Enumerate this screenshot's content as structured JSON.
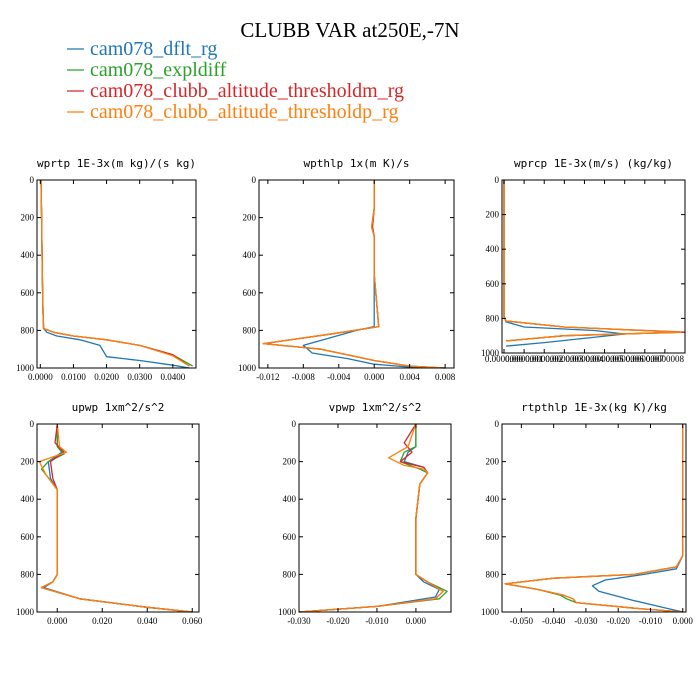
{
  "figure_title": "CLUBB VAR at250E,-7N",
  "colors": {
    "cam078_dflt_rg": "#1f77b4",
    "cam078_expldiff": "#2ca02c",
    "cam078_clubb_altitude_thresholdm_rg": "#d62728",
    "cam078_clubb_altitude_thresholdp_rg": "#ff7f0e"
  },
  "legend": [
    "cam078_dflt_rg",
    "cam078_expldiff",
    "cam078_clubb_altitude_thresholdm_rg",
    "cam078_clubb_altitude_thresholdp_rg"
  ],
  "chart_data": [
    {
      "type": "line",
      "title": "wprtp  1E-3x(m kg)/(s kg)",
      "xlim": [
        -0.001,
        0.047
      ],
      "ylim": [
        1000,
        0
      ],
      "xticks": [
        0,
        0.01,
        0.02,
        0.03,
        0.04
      ],
      "xtick_labels": [
        "0.0000",
        "0.0100",
        "0.0200",
        "0.0300",
        "0.0400"
      ],
      "yticks": [
        0,
        200,
        400,
        600,
        800,
        1000
      ],
      "ytick_labels": [
        "0",
        "200",
        "400",
        "600",
        "800",
        "1000"
      ],
      "series": [
        {
          "name": "cam078_dflt_rg",
          "x": [
            0.0002,
            0.0004,
            0.0006,
            0.0008,
            0.001,
            0.002,
            0.005,
            0.012,
            0.018,
            0.019,
            0.02,
            0.03,
            0.04,
            0.045
          ],
          "y": [
            0,
            200,
            500,
            700,
            790,
            810,
            830,
            850,
            880,
            910,
            940,
            960,
            985,
            1000
          ]
        },
        {
          "name": "cam078_expldiff",
          "x": [
            0.0002,
            0.0004,
            0.0006,
            0.0008,
            0.001,
            0.004,
            0.01,
            0.02,
            0.03,
            0.04,
            0.046
          ],
          "y": [
            0,
            200,
            500,
            700,
            790,
            810,
            830,
            850,
            880,
            930,
            990
          ]
        },
        {
          "name": "cam078_clubb_altitude_thresholdm_rg",
          "x": [
            0.0002,
            0.0004,
            0.0006,
            0.0008,
            0.001,
            0.004,
            0.01,
            0.02,
            0.03,
            0.04,
            0.045
          ],
          "y": [
            0,
            200,
            500,
            700,
            790,
            810,
            830,
            850,
            880,
            930,
            990
          ]
        },
        {
          "name": "cam078_clubb_altitude_thresholdp_rg",
          "x": [
            0.0002,
            0.0004,
            0.0006,
            0.0008,
            0.001,
            0.004,
            0.01,
            0.02,
            0.03,
            0.04,
            0.045
          ],
          "y": [
            0,
            200,
            500,
            700,
            790,
            810,
            830,
            850,
            880,
            935,
            990
          ]
        }
      ]
    },
    {
      "type": "line",
      "title": "wpthlp  1x(m K)/s",
      "xlim": [
        -0.013,
        0.009
      ],
      "ylim": [
        1000,
        0
      ],
      "xticks": [
        -0.012,
        -0.008,
        -0.004,
        0,
        0.004,
        0.008
      ],
      "xtick_labels": [
        "-0.012",
        "-0.008",
        "-0.004",
        "0.000",
        "0.004",
        "0.008"
      ],
      "yticks": [
        0,
        200,
        400,
        600,
        800,
        1000
      ],
      "ytick_labels": [
        "0",
        "200",
        "400",
        "600",
        "800",
        "1000"
      ],
      "series": [
        {
          "name": "cam078_dflt_rg",
          "x": [
            0,
            0,
            -0.0003,
            0,
            0,
            0,
            -0.002,
            -0.008,
            -0.007,
            -0.003,
            0,
            0.004,
            0.008
          ],
          "y": [
            0,
            150,
            250,
            300,
            500,
            780,
            800,
            880,
            920,
            950,
            980,
            995,
            1000
          ]
        },
        {
          "name": "cam078_expldiff",
          "x": [
            0,
            0,
            -0.0002,
            0,
            0,
            0.0005,
            -0.005,
            -0.0125,
            -0.006,
            0,
            0.004,
            0.008
          ],
          "y": [
            0,
            150,
            250,
            300,
            500,
            780,
            820,
            870,
            900,
            960,
            990,
            1000
          ]
        },
        {
          "name": "cam078_clubb_altitude_thresholdm_rg",
          "x": [
            0,
            0,
            -0.0002,
            0,
            0,
            0.0005,
            -0.005,
            -0.0125,
            -0.006,
            0,
            0.004,
            0.008
          ],
          "y": [
            0,
            150,
            250,
            300,
            500,
            780,
            820,
            870,
            900,
            960,
            990,
            1000
          ]
        },
        {
          "name": "cam078_clubb_altitude_thresholdp_rg",
          "x": [
            0,
            0,
            -0.0003,
            0,
            0,
            0.0005,
            -0.005,
            -0.0125,
            -0.006,
            0,
            0.004,
            0.008
          ],
          "y": [
            0,
            150,
            250,
            300,
            500,
            780,
            820,
            870,
            900,
            960,
            990,
            1000
          ]
        }
      ]
    },
    {
      "type": "line",
      "title": "wprcp  1E-3x(m/s) (kg/kg)",
      "xlim": [
        -1e-08,
        9e-07
      ],
      "ylim": [
        1000,
        0
      ],
      "xticks": [
        0,
        1e-07,
        2e-07,
        3e-07,
        4e-07,
        5e-07,
        6e-07,
        7e-07,
        8e-07
      ],
      "xtick_labels": [
        "0.0000000",
        "0.0000001",
        "0.0000002",
        "0.0000003",
        "0.0000004",
        "0.0000005",
        "0.0000006",
        "0.0000007",
        "0.0000008"
      ],
      "yticks": [
        0,
        200,
        400,
        600,
        800,
        1000
      ],
      "ytick_labels": [
        "0",
        "200",
        "400",
        "600",
        "800",
        "1000"
      ],
      "series": [
        {
          "name": "cam078_dflt_rg",
          "x": [
            0,
            0,
            0,
            1e-08,
            1e-07,
            4.5e-07,
            6e-07,
            2e-07,
            1e-08
          ],
          "y": [
            0,
            500,
            790,
            820,
            850,
            870,
            890,
            940,
            960
          ]
        },
        {
          "name": "cam078_expldiff",
          "x": [
            0,
            0,
            0,
            1e-08,
            3e-07,
            8.8e-07,
            3e-07,
            1e-08
          ],
          "y": [
            0,
            500,
            790,
            815,
            850,
            880,
            900,
            930
          ]
        },
        {
          "name": "cam078_clubb_altitude_thresholdm_rg",
          "x": [
            0,
            0,
            0,
            1e-08,
            3e-07,
            9e-07,
            3e-07,
            1e-08
          ],
          "y": [
            0,
            500,
            790,
            815,
            850,
            880,
            900,
            930
          ]
        },
        {
          "name": "cam078_clubb_altitude_thresholdp_rg",
          "x": [
            0,
            0,
            0,
            1e-08,
            3e-07,
            8.8e-07,
            3e-07,
            1e-08
          ],
          "y": [
            0,
            500,
            790,
            815,
            850,
            880,
            900,
            930
          ]
        }
      ]
    },
    {
      "type": "line",
      "title": "upwp  1xm^2/s^2",
      "xlim": [
        -0.009,
        0.063
      ],
      "ylim": [
        1000,
        0
      ],
      "xticks": [
        0,
        0.02,
        0.04,
        0.06
      ],
      "xtick_labels": [
        "0.000",
        "0.020",
        "0.040",
        "0.060"
      ],
      "yticks": [
        0,
        200,
        400,
        600,
        800,
        1000
      ],
      "ytick_labels": [
        "0",
        "200",
        "400",
        "600",
        "800",
        "1000"
      ],
      "series": [
        {
          "name": "cam078_dflt_rg",
          "x": [
            0,
            0,
            0.002,
            -0.004,
            -0.003,
            0,
            0,
            0,
            -0.002,
            -0.006,
            0.01,
            0.04,
            0.06
          ],
          "y": [
            0,
            120,
            150,
            200,
            290,
            350,
            500,
            800,
            840,
            870,
            930,
            975,
            1000
          ]
        },
        {
          "name": "cam078_expldiff",
          "x": [
            0,
            0,
            0.003,
            -0.004,
            -0.007,
            -0.003,
            0,
            0,
            0,
            -0.002,
            -0.007,
            0.01,
            0.04,
            0.06
          ],
          "y": [
            0,
            120,
            160,
            200,
            240,
            300,
            350,
            500,
            800,
            840,
            870,
            930,
            975,
            1000
          ]
        },
        {
          "name": "cam078_clubb_altitude_thresholdm_rg",
          "x": [
            0,
            -0.001,
            0.003,
            -0.003,
            -0.002,
            0,
            0,
            0,
            -0.002,
            -0.007,
            0.01,
            0.04,
            0.06
          ],
          "y": [
            0,
            100,
            150,
            200,
            290,
            350,
            500,
            800,
            840,
            870,
            930,
            975,
            1000
          ]
        },
        {
          "name": "cam078_clubb_altitude_thresholdp_rg",
          "x": [
            0,
            0.001,
            0.004,
            -0.008,
            -0.005,
            0,
            0,
            0,
            -0.002,
            -0.007,
            0.01,
            0.04,
            0.06
          ],
          "y": [
            0,
            120,
            150,
            200,
            270,
            350,
            500,
            800,
            840,
            870,
            930,
            975,
            1000
          ]
        }
      ]
    },
    {
      "type": "line",
      "title": "vpwp  1xm^2/s^2",
      "xlim": [
        -0.03,
        0.009
      ],
      "ylim": [
        1000,
        0
      ],
      "xticks": [
        -0.03,
        -0.02,
        -0.01,
        0
      ],
      "xtick_labels": [
        "-0.030",
        "-0.020",
        "-0.010",
        "0.000"
      ],
      "yticks": [
        0,
        200,
        400,
        600,
        800,
        1000
      ],
      "ytick_labels": [
        "0",
        "200",
        "400",
        "600",
        "800",
        "1000"
      ],
      "series": [
        {
          "name": "cam078_dflt_rg",
          "x": [
            0,
            0,
            -0.002,
            -0.003,
            0.002,
            0.003,
            0.001,
            0,
            0,
            0.002,
            0.006,
            0.005,
            -0.01,
            -0.03
          ],
          "y": [
            0,
            120,
            150,
            200,
            230,
            260,
            320,
            500,
            800,
            840,
            880,
            920,
            970,
            1000
          ]
        },
        {
          "name": "cam078_expldiff",
          "x": [
            0,
            0,
            -0.003,
            -0.004,
            0.001,
            0.003,
            0.001,
            0,
            0,
            0.003,
            0.008,
            0.006,
            -0.01,
            -0.03
          ],
          "y": [
            0,
            120,
            150,
            200,
            240,
            260,
            320,
            500,
            800,
            840,
            890,
            930,
            970,
            1000
          ]
        },
        {
          "name": "cam078_clubb_altitude_thresholdm_rg",
          "x": [
            0,
            -0.003,
            -0.001,
            -0.004,
            0.002,
            0.003,
            0.001,
            0,
            0,
            0.003,
            0.007,
            0.005,
            -0.01,
            -0.03
          ],
          "y": [
            0,
            100,
            150,
            200,
            230,
            260,
            320,
            500,
            800,
            840,
            890,
            930,
            970,
            1000
          ]
        },
        {
          "name": "cam078_clubb_altitude_thresholdp_rg",
          "x": [
            0,
            -0.002,
            -0.007,
            -0.003,
            0.002,
            0.003,
            0.001,
            0,
            0,
            0.003,
            0.007,
            0.005,
            -0.01,
            -0.03
          ],
          "y": [
            0,
            120,
            180,
            220,
            240,
            260,
            320,
            500,
            800,
            840,
            890,
            930,
            970,
            1000
          ]
        }
      ]
    },
    {
      "type": "line",
      "title": "rtpthlp  1E-3x(kg K)/kg",
      "xlim": [
        -0.056,
        0.001
      ],
      "ylim": [
        1000,
        0
      ],
      "xticks": [
        -0.05,
        -0.04,
        -0.03,
        -0.02,
        -0.01,
        0
      ],
      "xtick_labels": [
        "-0.050",
        "-0.040",
        "-0.030",
        "-0.020",
        "-0.010",
        "0.000"
      ],
      "yticks": [
        0,
        200,
        400,
        600,
        800,
        1000
      ],
      "ytick_labels": [
        "0",
        "200",
        "400",
        "600",
        "800",
        "1000"
      ],
      "series": [
        {
          "name": "cam078_dflt_rg",
          "x": [
            0,
            0,
            -0.002,
            -0.012,
            -0.024,
            -0.028,
            -0.026,
            -0.015,
            -0.005,
            0
          ],
          "y": [
            0,
            700,
            770,
            800,
            830,
            860,
            890,
            940,
            980,
            1000
          ]
        },
        {
          "name": "cam078_expldiff",
          "x": [
            0,
            0,
            -0.002,
            -0.015,
            -0.04,
            -0.055,
            -0.045,
            -0.038,
            -0.036,
            -0.033,
            -0.015,
            0
          ],
          "y": [
            0,
            700,
            760,
            800,
            820,
            850,
            880,
            910,
            930,
            950,
            980,
            1000
          ]
        },
        {
          "name": "cam078_clubb_altitude_thresholdm_rg",
          "x": [
            0,
            0,
            -0.002,
            -0.015,
            -0.04,
            -0.055,
            -0.045,
            -0.037,
            -0.034,
            -0.033,
            -0.015,
            0
          ],
          "y": [
            0,
            700,
            760,
            800,
            820,
            850,
            880,
            910,
            930,
            950,
            980,
            1000
          ]
        },
        {
          "name": "cam078_clubb_altitude_thresholdp_rg",
          "x": [
            0,
            0,
            -0.002,
            -0.015,
            -0.04,
            -0.055,
            -0.045,
            -0.037,
            -0.034,
            -0.033,
            -0.015,
            0
          ],
          "y": [
            0,
            700,
            760,
            800,
            820,
            850,
            880,
            910,
            930,
            950,
            980,
            1000
          ]
        }
      ]
    }
  ]
}
